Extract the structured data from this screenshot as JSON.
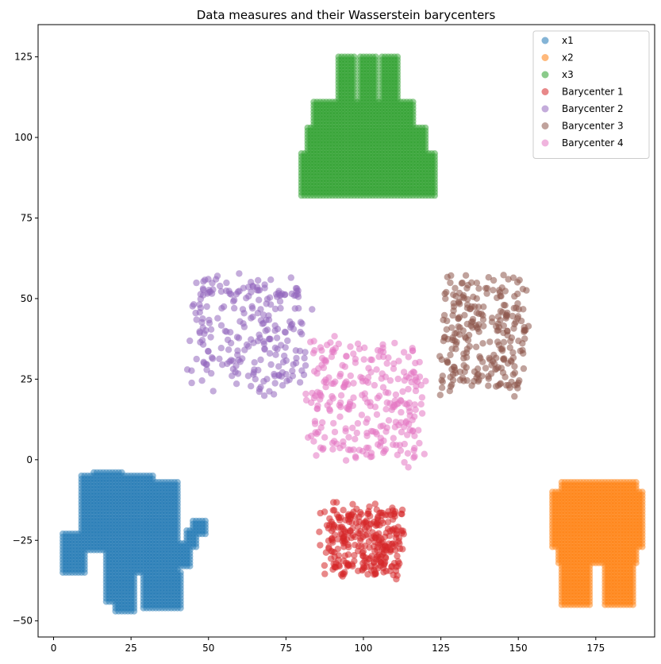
{
  "chart_data": {
    "type": "scatter",
    "title": "Data measures and their Wasserstein barycenters",
    "xlabel": "",
    "ylabel": "",
    "xlim": [
      -5,
      194
    ],
    "ylim": [
      -55,
      135
    ],
    "xticks": [
      0,
      25,
      50,
      75,
      100,
      125,
      150,
      175
    ],
    "yticks": [
      -50,
      -25,
      0,
      25,
      50,
      75,
      100,
      125
    ],
    "grid": false,
    "legend_position": "top-right",
    "series": [
      {
        "name": "x1",
        "color": "#1f77b4",
        "shape": "elephant",
        "regions": [
          {
            "x0": 3,
            "x1": 10,
            "y0": -35,
            "y1": -23
          },
          {
            "x0": 9,
            "x1": 32,
            "y0": -28,
            "y1": -5
          },
          {
            "x0": 13,
            "x1": 22,
            "y0": -8,
            "y1": -4
          },
          {
            "x0": 22,
            "x1": 40,
            "y0": -35,
            "y1": -7
          },
          {
            "x0": 26,
            "x1": 36,
            "y0": -9,
            "y1": -7
          },
          {
            "x0": 17,
            "x1": 26,
            "y0": -44,
            "y1": -28
          },
          {
            "x0": 20,
            "x1": 26,
            "y0": -47,
            "y1": -44
          },
          {
            "x0": 29,
            "x1": 36,
            "y0": -46,
            "y1": -34
          },
          {
            "x0": 36,
            "x1": 41,
            "y0": -46,
            "y1": -35
          },
          {
            "x0": 40,
            "x1": 44,
            "y0": -33,
            "y1": -26
          },
          {
            "x0": 43,
            "x1": 46,
            "y0": -27,
            "y1": -22
          },
          {
            "x0": 45,
            "x1": 49,
            "y0": -23,
            "y1": -19
          }
        ]
      },
      {
        "name": "x2",
        "color": "#ff7f0e",
        "shape": "tooth",
        "regions": [
          {
            "x0": 161,
            "x1": 190,
            "y0": -27,
            "y1": -10
          },
          {
            "x0": 164,
            "x1": 176,
            "y0": -12,
            "y1": -7
          },
          {
            "x0": 176,
            "x1": 188,
            "y0": -12,
            "y1": -7
          },
          {
            "x0": 163,
            "x1": 188,
            "y0": -32,
            "y1": -26
          },
          {
            "x0": 164,
            "x1": 173,
            "y0": -45,
            "y1": -31
          },
          {
            "x0": 178,
            "x1": 187,
            "y0": -45,
            "y1": -31
          }
        ]
      },
      {
        "name": "x3",
        "color": "#2ca02c",
        "shape": "cake",
        "regions": [
          {
            "x0": 80,
            "x1": 123,
            "y0": 82,
            "y1": 95
          },
          {
            "x0": 82,
            "x1": 120,
            "y0": 94,
            "y1": 103
          },
          {
            "x0": 84,
            "x1": 116,
            "y0": 102,
            "y1": 111
          },
          {
            "x0": 92,
            "x1": 97,
            "y0": 110,
            "y1": 125
          },
          {
            "x0": 99,
            "x1": 104,
            "y0": 110,
            "y1": 125
          },
          {
            "x0": 106,
            "x1": 111,
            "y0": 110,
            "y1": 125
          }
        ]
      },
      {
        "name": "Barycenter 1",
        "color": "#d62728",
        "center": [
          100,
          -25
        ],
        "spread": [
          12,
          10
        ],
        "count": 300
      },
      {
        "name": "Barycenter 2",
        "color": "#9467bd",
        "center": [
          63,
          39
        ],
        "spread": [
          18,
          17
        ],
        "count": 250
      },
      {
        "name": "Barycenter 3",
        "color": "#8c564b",
        "center": [
          139,
          39
        ],
        "spread": [
          13,
          17
        ],
        "count": 260
      },
      {
        "name": "Barycenter 4",
        "color": "#e377c2",
        "center": [
          101,
          18
        ],
        "spread": [
          18,
          18
        ],
        "count": 280
      }
    ]
  }
}
